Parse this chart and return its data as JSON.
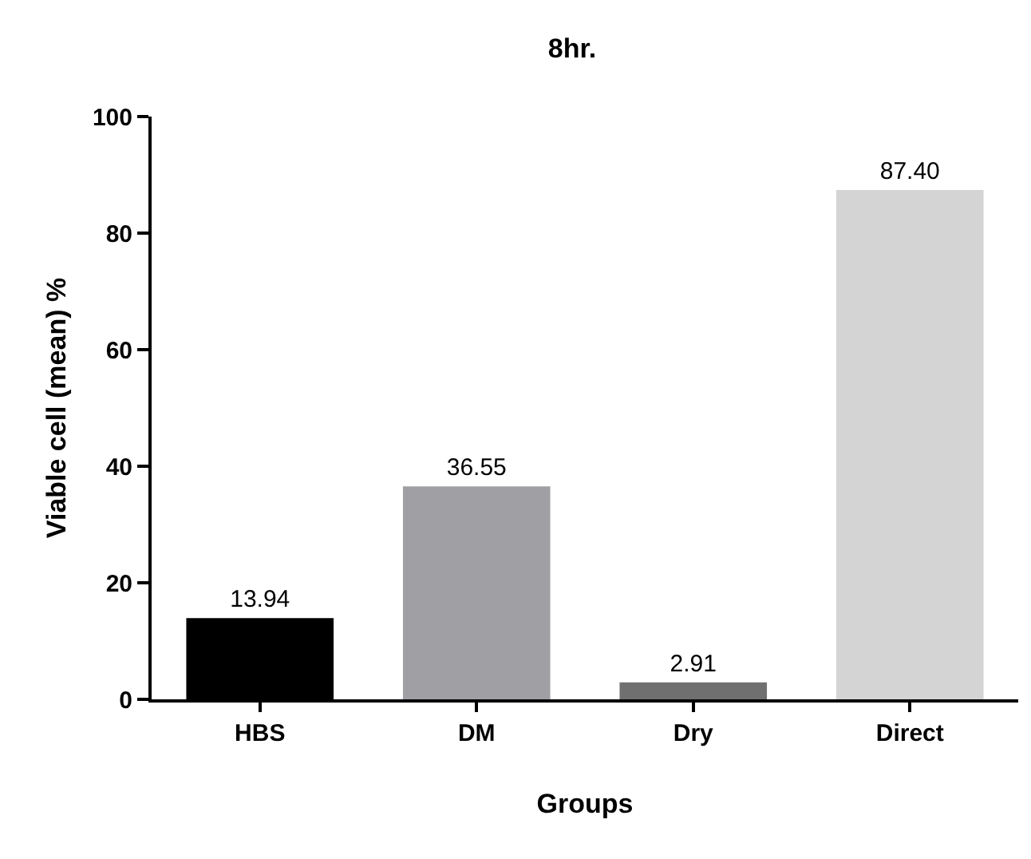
{
  "chart_data": {
    "type": "bar",
    "title": "8hr.",
    "xlabel": "Groups",
    "ylabel": "Viable cell (mean) %",
    "categories": [
      "HBS",
      "DM",
      "Dry",
      "Direct"
    ],
    "values": [
      13.94,
      36.55,
      2.91,
      87.4
    ],
    "colors": [
      "#000000",
      "#a0a0a4",
      "#707070",
      "#d4d4d4"
    ],
    "value_labels": [
      "13.94",
      "36.55",
      "2.91",
      "87.40"
    ],
    "ylim": [
      0,
      100
    ],
    "yticks": [
      0,
      20,
      40,
      60,
      80,
      100
    ],
    "grid": false,
    "legend": false
  }
}
